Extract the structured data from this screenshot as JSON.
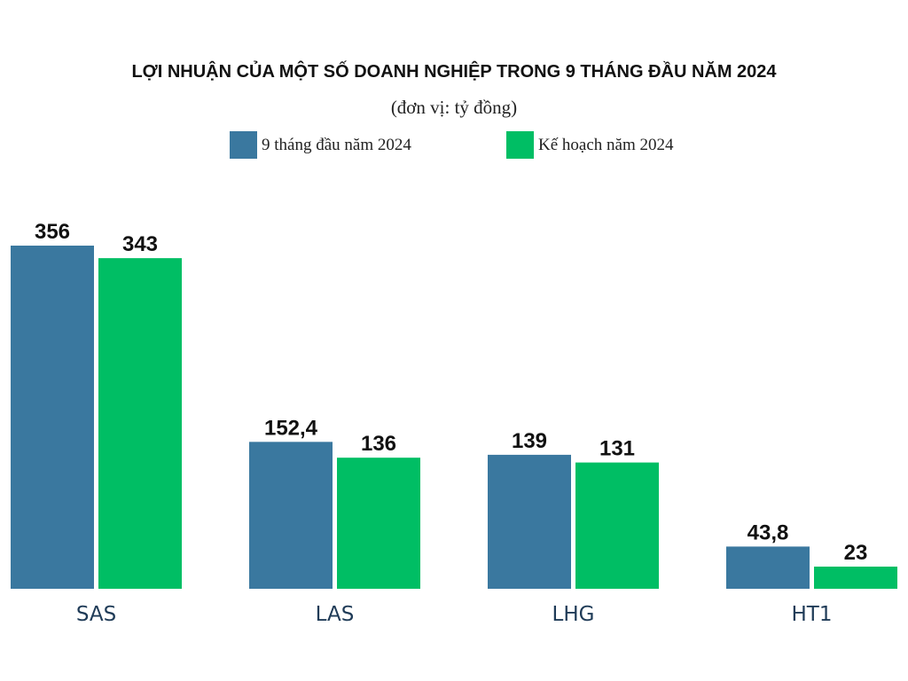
{
  "chart_data": {
    "type": "bar",
    "title": "LỢI NHUẬN CỦA MỘT SỐ DOANH NGHIỆP TRONG 9 THÁNG ĐẦU NĂM 2024",
    "subtitle": "(đơn vị: tỷ đồng)",
    "categories": [
      "SAS",
      "LAS",
      "LHG",
      "HT1"
    ],
    "series": [
      {
        "name": "9 tháng đầu năm 2024",
        "color": "#3a789f",
        "values": [
          356,
          152.4,
          139,
          43.8
        ],
        "labels": [
          "356",
          "152,4",
          "139",
          "43,8"
        ]
      },
      {
        "name": "Kế hoạch năm 2024",
        "color": "#00be64",
        "values": [
          343,
          136,
          131,
          23
        ],
        "labels": [
          "343",
          "136",
          "131",
          "23"
        ]
      }
    ],
    "ylim": [
      0,
      356
    ],
    "grid": false,
    "legend_position": "top-center"
  }
}
